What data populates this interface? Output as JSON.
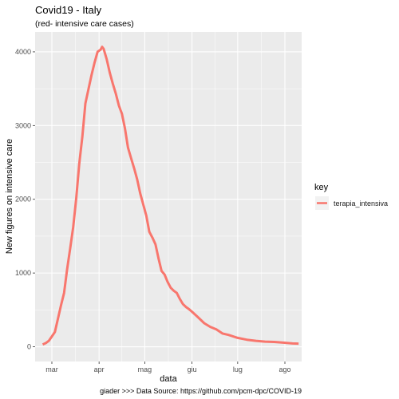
{
  "chart_data": {
    "type": "line",
    "title": "Covid19 - Italy",
    "subtitle": "(red- intensive care cases)",
    "xlabel": "data",
    "ylabel": "New figures on intensive care",
    "caption": "giader >>> Data Source: https://github.com/pcm-dpc/COVID-19",
    "x_ticks": [
      {
        "label": "mar",
        "date": "2020-03-01"
      },
      {
        "label": "apr",
        "date": "2020-04-01"
      },
      {
        "label": "mag",
        "date": "2020-05-01"
      },
      {
        "label": "giu",
        "date": "2020-06-01"
      },
      {
        "label": "lug",
        "date": "2020-07-01"
      },
      {
        "label": "ago",
        "date": "2020-08-01"
      }
    ],
    "y_ticks": [
      0,
      1000,
      2000,
      3000,
      4000
    ],
    "xlim": [
      "2020-02-19",
      "2020-08-12"
    ],
    "ylim": [
      -200,
      4270
    ],
    "grid": true,
    "legend": {
      "title": "key",
      "position": "right"
    },
    "series": [
      {
        "name": "terapia_intensiva",
        "color": "#F8766D",
        "x": [
          "2020-02-24",
          "2020-02-26",
          "2020-02-28",
          "2020-03-01",
          "2020-03-03",
          "2020-03-05",
          "2020-03-07",
          "2020-03-09",
          "2020-03-11",
          "2020-03-13",
          "2020-03-15",
          "2020-03-17",
          "2020-03-19",
          "2020-03-21",
          "2020-03-23",
          "2020-03-25",
          "2020-03-27",
          "2020-03-29",
          "2020-03-31",
          "2020-04-02",
          "2020-04-03",
          "2020-04-04",
          "2020-04-06",
          "2020-04-08",
          "2020-04-10",
          "2020-04-12",
          "2020-04-14",
          "2020-04-16",
          "2020-04-18",
          "2020-04-20",
          "2020-04-22",
          "2020-04-24",
          "2020-04-26",
          "2020-04-28",
          "2020-04-30",
          "2020-05-02",
          "2020-05-04",
          "2020-05-06",
          "2020-05-08",
          "2020-05-10",
          "2020-05-12",
          "2020-05-14",
          "2020-05-16",
          "2020-05-18",
          "2020-05-20",
          "2020-05-22",
          "2020-05-24",
          "2020-05-26",
          "2020-05-28",
          "2020-05-30",
          "2020-06-01",
          "2020-06-05",
          "2020-06-09",
          "2020-06-13",
          "2020-06-17",
          "2020-06-21",
          "2020-06-25",
          "2020-07-01",
          "2020-07-07",
          "2020-07-13",
          "2020-07-19",
          "2020-07-25",
          "2020-07-31",
          "2020-08-06",
          "2020-08-10"
        ],
        "values": [
          30,
          50,
          80,
          140,
          200,
          380,
          560,
          730,
          1050,
          1330,
          1620,
          2010,
          2480,
          2850,
          3300,
          3490,
          3680,
          3850,
          4000,
          4030,
          4068,
          4040,
          3900,
          3720,
          3570,
          3430,
          3270,
          3160,
          2960,
          2700,
          2560,
          2420,
          2270,
          2080,
          1930,
          1780,
          1560,
          1480,
          1390,
          1200,
          1030,
          980,
          880,
          800,
          760,
          730,
          650,
          580,
          540,
          510,
          475,
          400,
          320,
          270,
          235,
          180,
          160,
          120,
          95,
          80,
          70,
          65,
          55,
          45,
          42
        ]
      }
    ]
  }
}
